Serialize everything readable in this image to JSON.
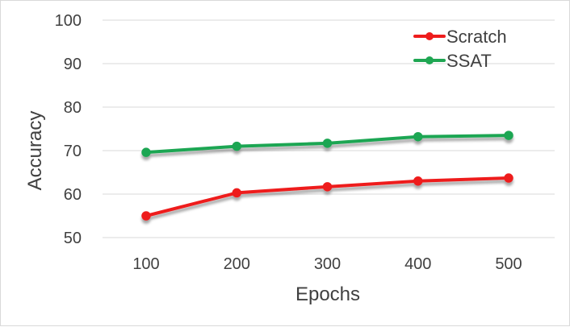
{
  "chart_data": {
    "type": "line",
    "x": [
      100,
      200,
      300,
      400,
      500
    ],
    "categories": [
      "100",
      "200",
      "300",
      "400",
      "500"
    ],
    "series": [
      {
        "name": "Scratch",
        "values": [
          55.0,
          60.3,
          61.7,
          63.0,
          63.7
        ],
        "color": "#ee1c1c"
      },
      {
        "name": "SSAT",
        "values": [
          69.6,
          71.0,
          71.7,
          73.2,
          73.5
        ],
        "color": "#1fa652"
      }
    ],
    "xlabel": "Epochs",
    "ylabel": "Accuracy",
    "ylim": [
      50,
      100
    ],
    "yticks": [
      "50",
      "60",
      "70",
      "80",
      "90",
      "100"
    ],
    "grid": true,
    "legend_position": "top-right"
  }
}
